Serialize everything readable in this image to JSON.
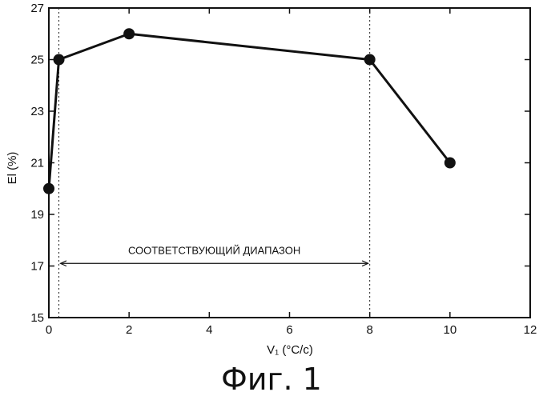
{
  "chart_data": {
    "type": "line",
    "title": "",
    "xlabel": "V₁ (°C/c)",
    "ylabel": "El (%)",
    "xlim": [
      0,
      12
    ],
    "ylim": [
      15,
      27
    ],
    "x_ticks": [
      0,
      2,
      4,
      6,
      8,
      10,
      12
    ],
    "y_ticks": [
      15,
      17,
      19,
      21,
      23,
      25,
      27
    ],
    "series": [
      {
        "x": [
          0,
          0.25,
          2,
          8,
          10
        ],
        "y": [
          20,
          25,
          26,
          25,
          21
        ],
        "color": "#111111"
      }
    ],
    "vertical_lines": [
      0.25,
      8
    ],
    "range_annotation": {
      "from": 0.25,
      "to": 8,
      "y": 17.1,
      "label": "СООТВЕТСТВУЮЩИЙ ДИАПАЗОН"
    },
    "grid": false
  },
  "caption": "Фиг. 1"
}
